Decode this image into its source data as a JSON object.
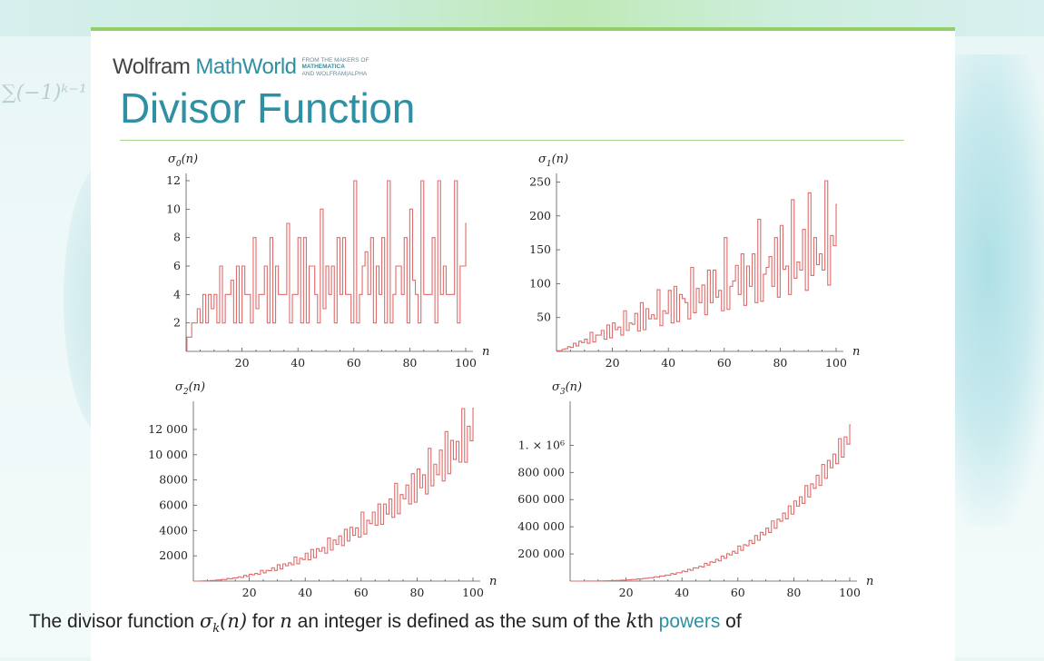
{
  "header": {
    "brand_wolfram": "Wolfram",
    "brand_mathworld": "MathWorld",
    "tagline_line1_plain": "FROM THE MAKERS OF ",
    "tagline_line1_bold": "MATHEMATICA",
    "tagline_line2": "AND WOLFRAM|ALPHA",
    "accent_color": "#2f8fa3",
    "rule_color": "#a9d68e"
  },
  "page_title": "Divisor Function",
  "body": {
    "intro_prefix": "The divisor function ",
    "sigma_k": "σ",
    "sub_k": "k",
    "paren_n": "(n)",
    "for_text": " for ",
    "n_var": "n",
    "middle_text": " an integer is defined as the sum of the ",
    "k_var": "k",
    "th_text": "th ",
    "powers_link": "powers",
    "of_text": " of"
  },
  "chart_data": [
    {
      "type": "line",
      "title": "σ0(n)",
      "ylabel_main": "σ",
      "ylabel_sub": "0",
      "ylabel_tail": "(n)",
      "xlabel": "n",
      "k": 0,
      "xlim": [
        0,
        100
      ],
      "ylim": [
        0,
        12
      ],
      "xticks": [
        "20",
        "40",
        "60",
        "80",
        "100"
      ],
      "yticks": [
        "2",
        "4",
        "6",
        "8",
        "10",
        "12"
      ],
      "ytick_values": [
        2,
        4,
        6,
        8,
        10,
        12
      ],
      "line_color": "#e06b6b"
    },
    {
      "type": "line",
      "title": "σ1(n)",
      "ylabel_main": "σ",
      "ylabel_sub": "1",
      "ylabel_tail": "(n)",
      "xlabel": "n",
      "k": 1,
      "xlim": [
        0,
        100
      ],
      "ylim": [
        0,
        252
      ],
      "xticks": [
        "20",
        "40",
        "60",
        "80",
        "100"
      ],
      "yticks": [
        "50",
        "100",
        "150",
        "200",
        "250"
      ],
      "ytick_values": [
        50,
        100,
        150,
        200,
        250
      ],
      "line_color": "#e06b6b"
    },
    {
      "type": "line",
      "title": "σ2(n)",
      "ylabel_main": "σ",
      "ylabel_sub": "2",
      "ylabel_tail": "(n)",
      "xlabel": "n",
      "k": 2,
      "xlim": [
        0,
        100
      ],
      "ylim": [
        0,
        13650
      ],
      "xticks": [
        "20",
        "40",
        "60",
        "80",
        "100"
      ],
      "yticks": [
        "2000",
        "4000",
        "6000",
        "8000",
        "10 000",
        "12 000"
      ],
      "ytick_values": [
        2000,
        4000,
        6000,
        8000,
        10000,
        12000
      ],
      "line_color": "#e06b6b"
    },
    {
      "type": "line",
      "title": "σ3(n)",
      "ylabel_main": "σ",
      "ylabel_sub": "3",
      "ylabel_tail": "(n)",
      "xlabel": "n",
      "k": 3,
      "xlim": [
        0,
        100
      ],
      "ylim": [
        0,
        1270000
      ],
      "xticks": [
        "20",
        "40",
        "60",
        "80",
        "100"
      ],
      "yticks": [
        "200 000",
        "400 000",
        "600 000",
        "800 000",
        "1. × 10⁶"
      ],
      "ytick_values": [
        200000,
        400000,
        600000,
        800000,
        1000000
      ],
      "line_color": "#e06b6b"
    }
  ]
}
